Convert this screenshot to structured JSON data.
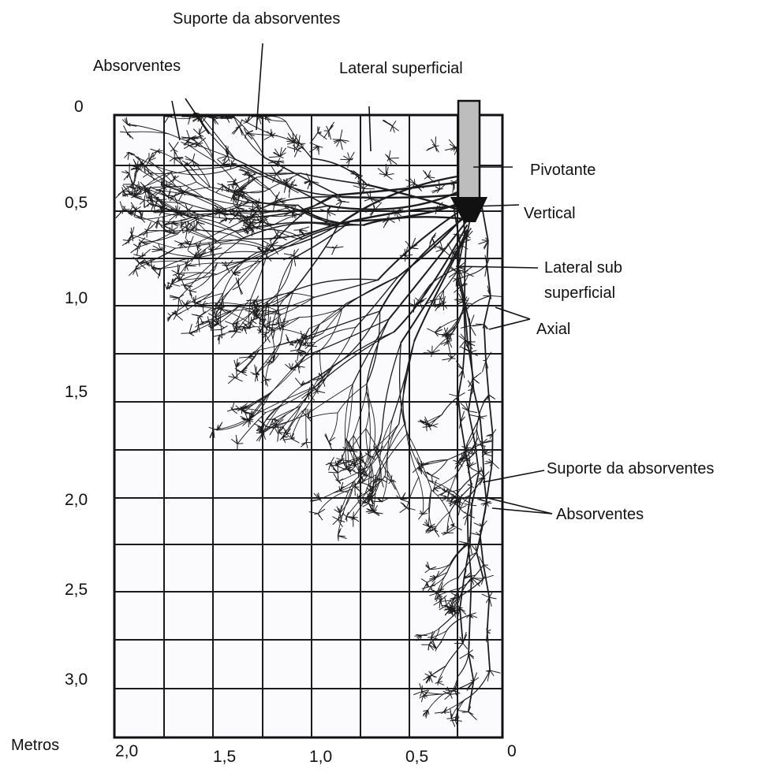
{
  "labels": {
    "suporte_top": "Suporte da absorventes",
    "absorventes_top": "Absorventes",
    "lateral_superficial": "Lateral superficial",
    "pivotante": "Pivotante",
    "vertical": "Vertical",
    "lateral_sub_1": "Lateral sub",
    "lateral_sub_2": "superficial",
    "axial": "Axial",
    "suporte_bottom": "Suporte da absorventes",
    "absorventes_bottom": "Absorventes",
    "metros": "Metros"
  },
  "y_ticks": [
    "0",
    "0,5",
    "1,0",
    "1,5",
    "2,0",
    "2,5",
    "3,0"
  ],
  "x_ticks": [
    "2,0",
    "1,5",
    "1,0",
    "0,5",
    "0"
  ],
  "colors": {
    "ink": "#111111",
    "paper": "#fbfbfd"
  }
}
